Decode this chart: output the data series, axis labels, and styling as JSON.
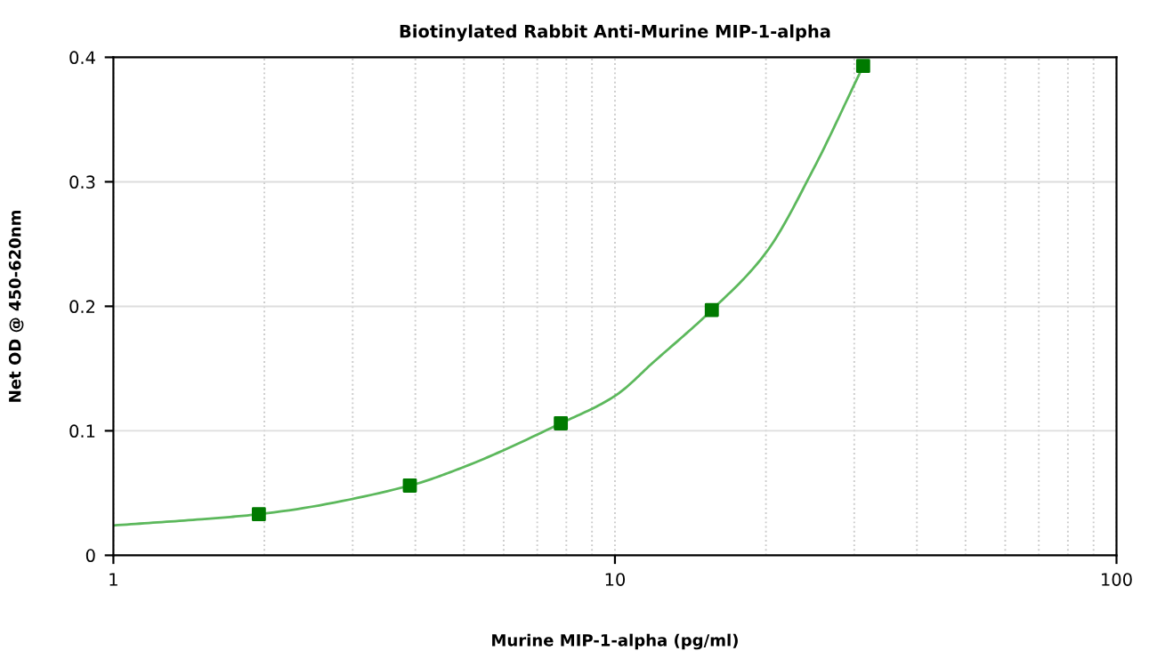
{
  "chart_data": {
    "type": "scatter",
    "title": "Biotinylated Rabbit Anti-Murine MIP-1-alpha",
    "xlabel": "Murine MIP-1-alpha (pg/ml)",
    "ylabel": "Net OD @ 450-620nm",
    "series": [
      {
        "color": "#007a00",
        "marker": "square",
        "x": [
          1.95,
          3.9,
          7.8,
          15.6,
          31.25
        ],
        "values": [
          0.033,
          0.056,
          0.106,
          0.197,
          0.393
        ]
      },
      {
        "type": "line",
        "color": "#5cb85c",
        "marker": "none",
        "x": [
          1,
          1.5,
          1.95,
          3.9,
          5,
          7.8,
          10,
          12,
          15.6,
          20,
          25,
          30,
          31.25
        ],
        "values": [
          0.024,
          0.029,
          0.033,
          0.056,
          0.071,
          0.106,
          0.128,
          0.156,
          0.197,
          0.243,
          0.312,
          0.378,
          0.393
        ]
      }
    ],
    "log": "x",
    "xlim": [
      1,
      100
    ],
    "xticks": [
      1,
      10,
      100
    ],
    "ylim": [
      0,
      0.4
    ],
    "yticks": [
      0,
      0.1,
      0.2,
      0.3,
      0.4
    ],
    "grid": true
  }
}
